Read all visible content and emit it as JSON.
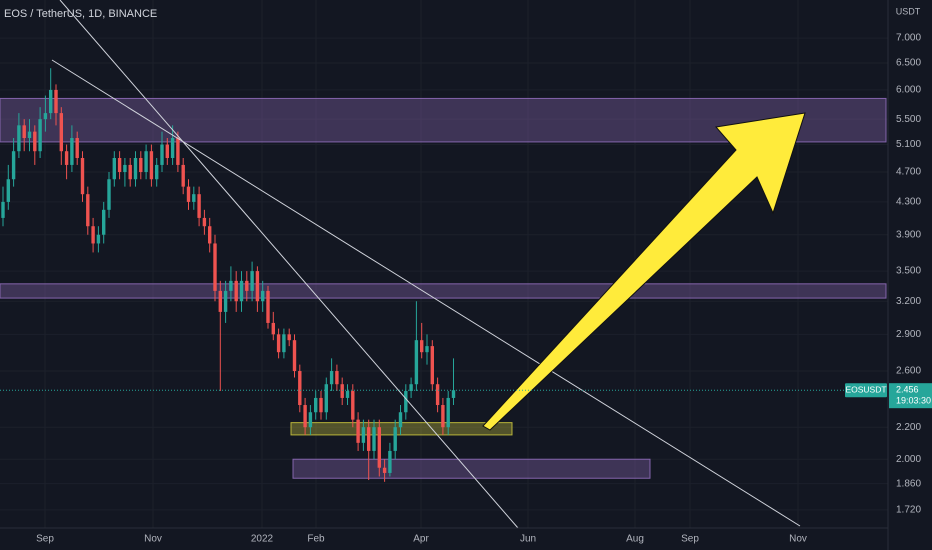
{
  "chart_data": {
    "type": "candlestick",
    "title": "EOS / TetherUS, 1D, BINANCE",
    "currency": "USDT",
    "log_scale": true,
    "grid": true,
    "up_color": "#26a69a",
    "down_color": "#ef5350",
    "ylim": [
      1.63,
      7.84
    ],
    "yticks": [
      {
        "value": 7,
        "label": "7.000"
      },
      {
        "value": 6.5,
        "label": "6.500"
      },
      {
        "value": 6,
        "label": "6.000"
      },
      {
        "value": 5.5,
        "label": "5.500"
      },
      {
        "value": 5.1,
        "label": "5.100"
      },
      {
        "value": 4.7,
        "label": "4.700"
      },
      {
        "value": 4.3,
        "label": "4.300"
      },
      {
        "value": 3.9,
        "label": "3.900"
      },
      {
        "value": 3.5,
        "label": "3.500"
      },
      {
        "value": 3.2,
        "label": "3.200"
      },
      {
        "value": 2.9,
        "label": "2.900"
      },
      {
        "value": 2.6,
        "label": "2.600"
      },
      {
        "value": 2.2,
        "label": "2.200"
      },
      {
        "value": 2,
        "label": "2.000"
      },
      {
        "value": 1.86,
        "label": "1.860"
      },
      {
        "value": 1.72,
        "label": "1.720"
      }
    ],
    "time_labels": [
      "Sep",
      "Nov",
      "2022",
      "Feb",
      "Apr",
      "Jun",
      "Aug",
      "Sep",
      "Nov"
    ],
    "symbol_tag": "EOSUSDT",
    "last_price": 2.456,
    "countdown": "19:03:30",
    "zones": [
      {
        "top": 5.85,
        "bottom": 5.14,
        "color": "#8e6bb8"
      },
      {
        "top": 3.37,
        "bottom": 3.23,
        "color": "#8e6bb8"
      },
      {
        "top": 2.23,
        "bottom": 2.15,
        "color": "#c8c23c"
      },
      {
        "top": 2.0,
        "bottom": 1.89,
        "color": "#8e6bb8"
      }
    ],
    "candles": [
      [
        4.1,
        4.5,
        4.0,
        4.3
      ],
      [
        4.3,
        4.8,
        4.2,
        4.6
      ],
      [
        4.6,
        5.2,
        4.5,
        5.0
      ],
      [
        5.0,
        5.6,
        4.9,
        5.4
      ],
      [
        5.4,
        5.5,
        5.0,
        5.2
      ],
      [
        5.2,
        5.5,
        5.0,
        5.3
      ],
      [
        5.3,
        5.4,
        4.8,
        5.0
      ],
      [
        5.0,
        5.7,
        4.9,
        5.5
      ],
      [
        5.5,
        5.9,
        5.3,
        5.6
      ],
      [
        5.6,
        6.4,
        5.5,
        6.0
      ],
      [
        6.0,
        6.1,
        5.4,
        5.6
      ],
      [
        5.6,
        5.7,
        4.8,
        5.0
      ],
      [
        5.0,
        5.1,
        4.6,
        4.8
      ],
      [
        4.8,
        5.4,
        4.7,
        5.2
      ],
      [
        5.2,
        5.3,
        4.8,
        4.9
      ],
      [
        4.9,
        5.0,
        4.3,
        4.4
      ],
      [
        4.4,
        4.5,
        3.9,
        4.0
      ],
      [
        4.0,
        4.1,
        3.7,
        3.8
      ],
      [
        3.8,
        4.0,
        3.7,
        3.9
      ],
      [
        3.9,
        4.3,
        3.8,
        4.2
      ],
      [
        4.2,
        4.7,
        4.1,
        4.6
      ],
      [
        4.6,
        5.0,
        4.5,
        4.9
      ],
      [
        4.9,
        5.0,
        4.6,
        4.7
      ],
      [
        4.7,
        4.9,
        4.5,
        4.8
      ],
      [
        4.8,
        4.9,
        4.5,
        4.6
      ],
      [
        4.6,
        5.0,
        4.5,
        4.9
      ],
      [
        4.9,
        5.0,
        4.6,
        4.7
      ],
      [
        4.7,
        5.1,
        4.6,
        5.0
      ],
      [
        5.0,
        5.1,
        4.5,
        4.6
      ],
      [
        4.6,
        4.9,
        4.5,
        4.8
      ],
      [
        4.8,
        5.3,
        4.7,
        5.1
      ],
      [
        5.1,
        5.2,
        4.8,
        4.9
      ],
      [
        4.9,
        5.4,
        4.8,
        5.2
      ],
      [
        5.2,
        5.3,
        4.7,
        4.8
      ],
      [
        4.8,
        4.9,
        4.4,
        4.5
      ],
      [
        4.5,
        4.6,
        4.2,
        4.3
      ],
      [
        4.3,
        4.5,
        4.2,
        4.4
      ],
      [
        4.4,
        4.5,
        4.0,
        4.1
      ],
      [
        4.1,
        4.2,
        3.9,
        4.0
      ],
      [
        4.0,
        4.1,
        3.7,
        3.8
      ],
      [
        3.8,
        3.9,
        3.2,
        3.3
      ],
      [
        3.3,
        3.4,
        2.45,
        3.1
      ],
      [
        3.1,
        3.4,
        3.0,
        3.3
      ],
      [
        3.3,
        3.55,
        3.2,
        3.4
      ],
      [
        3.4,
        3.5,
        3.1,
        3.2
      ],
      [
        3.2,
        3.5,
        3.1,
        3.4
      ],
      [
        3.4,
        3.5,
        3.2,
        3.3
      ],
      [
        3.3,
        3.6,
        3.2,
        3.5
      ],
      [
        3.5,
        3.55,
        3.1,
        3.2
      ],
      [
        3.2,
        3.4,
        3.1,
        3.3
      ],
      [
        3.3,
        3.35,
        2.95,
        3.0
      ],
      [
        3.0,
        3.1,
        2.85,
        2.9
      ],
      [
        2.9,
        2.95,
        2.7,
        2.75
      ],
      [
        2.75,
        2.95,
        2.7,
        2.9
      ],
      [
        2.9,
        2.95,
        2.8,
        2.85
      ],
      [
        2.85,
        2.9,
        2.55,
        2.6
      ],
      [
        2.6,
        2.65,
        2.3,
        2.35
      ],
      [
        2.35,
        2.4,
        2.15,
        2.2
      ],
      [
        2.2,
        2.35,
        2.15,
        2.3
      ],
      [
        2.3,
        2.45,
        2.25,
        2.4
      ],
      [
        2.4,
        2.45,
        2.25,
        2.3
      ],
      [
        2.3,
        2.55,
        2.25,
        2.5
      ],
      [
        2.5,
        2.7,
        2.45,
        2.6
      ],
      [
        2.6,
        2.65,
        2.45,
        2.5
      ],
      [
        2.5,
        2.55,
        2.35,
        2.4
      ],
      [
        2.4,
        2.5,
        2.35,
        2.45
      ],
      [
        2.45,
        2.5,
        2.2,
        2.25
      ],
      [
        2.25,
        2.3,
        2.05,
        2.1
      ],
      [
        2.1,
        2.25,
        2.05,
        2.2
      ],
      [
        2.2,
        2.25,
        1.88,
        2.05
      ],
      [
        2.05,
        2.25,
        2.0,
        2.2
      ],
      [
        2.2,
        2.25,
        1.9,
        1.95
      ],
      [
        1.95,
        2.0,
        1.87,
        1.92
      ],
      [
        1.92,
        2.1,
        1.9,
        2.05
      ],
      [
        2.05,
        2.25,
        2.0,
        2.2
      ],
      [
        2.2,
        2.35,
        2.15,
        2.3
      ],
      [
        2.3,
        2.5,
        2.25,
        2.45
      ],
      [
        2.45,
        2.55,
        2.4,
        2.5
      ],
      [
        2.5,
        3.2,
        2.45,
        2.85
      ],
      [
        2.85,
        3.0,
        2.7,
        2.75
      ],
      [
        2.75,
        2.9,
        2.65,
        2.8
      ],
      [
        2.8,
        2.85,
        2.45,
        2.5
      ],
      [
        2.5,
        2.55,
        2.3,
        2.35
      ],
      [
        2.35,
        2.4,
        2.15,
        2.2
      ],
      [
        2.2,
        2.45,
        2.15,
        2.4
      ],
      [
        2.4,
        2.7,
        2.35,
        2.456
      ]
    ]
  }
}
